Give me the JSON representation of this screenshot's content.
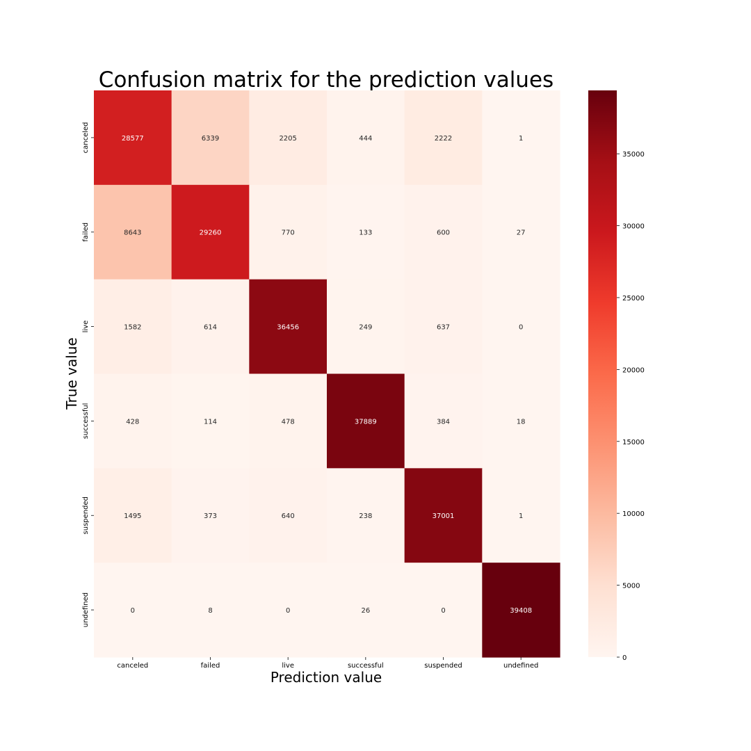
{
  "chart_data": {
    "type": "heatmap",
    "title": "Confusion matrix for the prediction values",
    "xlabel": "Prediction value",
    "ylabel": "True value",
    "x_categories": [
      "canceled",
      "failed",
      "live",
      "successful",
      "suspended",
      "undefined"
    ],
    "y_categories": [
      "canceled",
      "failed",
      "live",
      "successful",
      "suspended",
      "undefined"
    ],
    "values": [
      [
        28577,
        6339,
        2205,
        444,
        2222,
        1
      ],
      [
        8643,
        29260,
        770,
        133,
        600,
        27
      ],
      [
        1582,
        614,
        36456,
        249,
        637,
        0
      ],
      [
        428,
        114,
        478,
        37889,
        384,
        18
      ],
      [
        1495,
        373,
        640,
        238,
        37001,
        1
      ],
      [
        0,
        8,
        0,
        26,
        0,
        39408
      ]
    ],
    "colormap": "Reds",
    "vmin": 0,
    "vmax": 39408,
    "colorbar_ticks": [
      0,
      5000,
      10000,
      15000,
      20000,
      25000,
      30000,
      35000
    ],
    "annot_threshold": 19704,
    "annot_dark_color": "#262626",
    "annot_light_color": "#ffffff"
  }
}
